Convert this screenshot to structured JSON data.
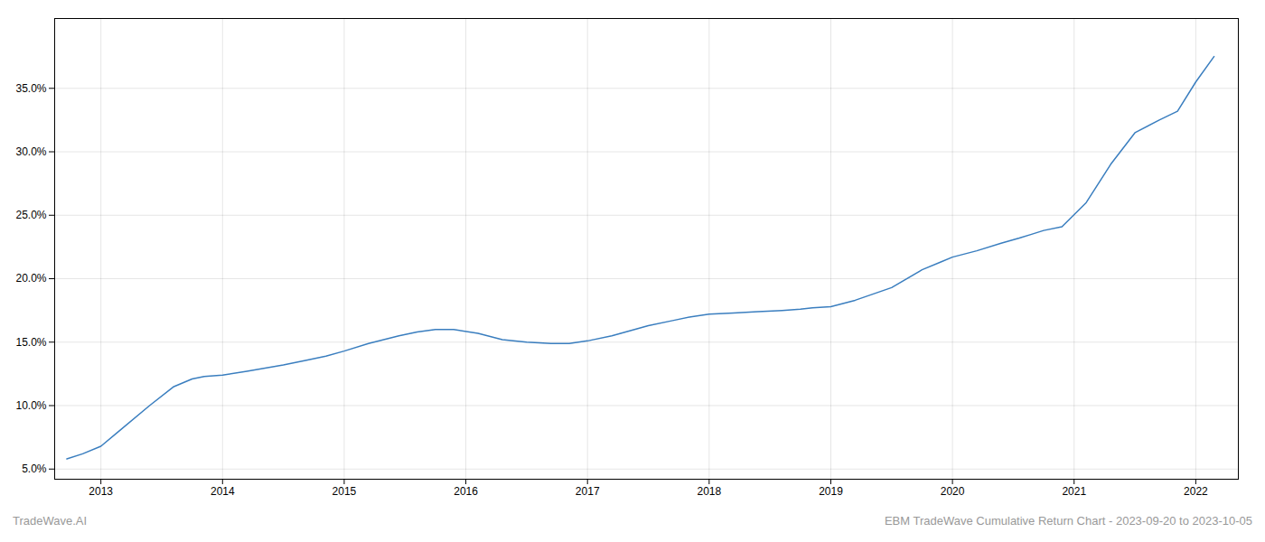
{
  "chart_data": {
    "type": "line",
    "x": [
      2012.72,
      2012.85,
      2013.0,
      2013.15,
      2013.4,
      2013.6,
      2013.75,
      2013.85,
      2014.0,
      2014.2,
      2014.5,
      2014.7,
      2014.85,
      2015.0,
      2015.2,
      2015.45,
      2015.6,
      2015.75,
      2015.9,
      2016.1,
      2016.3,
      2016.5,
      2016.7,
      2016.85,
      2017.0,
      2017.2,
      2017.5,
      2017.7,
      2017.85,
      2018.0,
      2018.2,
      2018.4,
      2018.6,
      2018.75,
      2018.85,
      2019.0,
      2019.2,
      2019.5,
      2019.75,
      2019.9,
      2020.0,
      2020.2,
      2020.4,
      2020.55,
      2020.65,
      2020.75,
      2020.9,
      2021.1,
      2021.3,
      2021.5,
      2021.7,
      2021.85,
      2022.0,
      2022.15
    ],
    "values": [
      0.058,
      0.062,
      0.068,
      0.08,
      0.1,
      0.115,
      0.121,
      0.123,
      0.124,
      0.127,
      0.132,
      0.136,
      0.139,
      0.143,
      0.149,
      0.155,
      0.158,
      0.16,
      0.16,
      0.157,
      0.152,
      0.15,
      0.149,
      0.149,
      0.151,
      0.155,
      0.163,
      0.167,
      0.17,
      0.172,
      0.173,
      0.174,
      0.175,
      0.176,
      0.177,
      0.178,
      0.183,
      0.193,
      0.207,
      0.213,
      0.217,
      0.222,
      0.228,
      0.232,
      0.235,
      0.238,
      0.241,
      0.26,
      0.29,
      0.315,
      0.325,
      0.332,
      0.355,
      0.375
    ],
    "color": "#3a7ebf",
    "xlim": [
      2012.62,
      2022.35
    ],
    "xticks": [
      2013,
      2014,
      2015,
      2016,
      2017,
      2018,
      2019,
      2020,
      2021,
      2022
    ],
    "ylim": [
      0.042,
      0.405
    ],
    "yticks": [
      {
        "value": 0.05,
        "label": "5.0%"
      },
      {
        "value": 0.1,
        "label": "10.0%"
      },
      {
        "value": 0.15,
        "label": "15.0%"
      },
      {
        "value": 0.2,
        "label": "20.0%"
      },
      {
        "value": 0.25,
        "label": "25.0%"
      },
      {
        "value": 0.3,
        "label": "30.0%"
      },
      {
        "value": 0.35,
        "label": "35.0%"
      }
    ],
    "grid": true,
    "annotations": [
      "TradeWave.AI",
      "EBM TradeWave Cumulative Return Chart - 2023-09-20 to 2023-10-05"
    ]
  }
}
